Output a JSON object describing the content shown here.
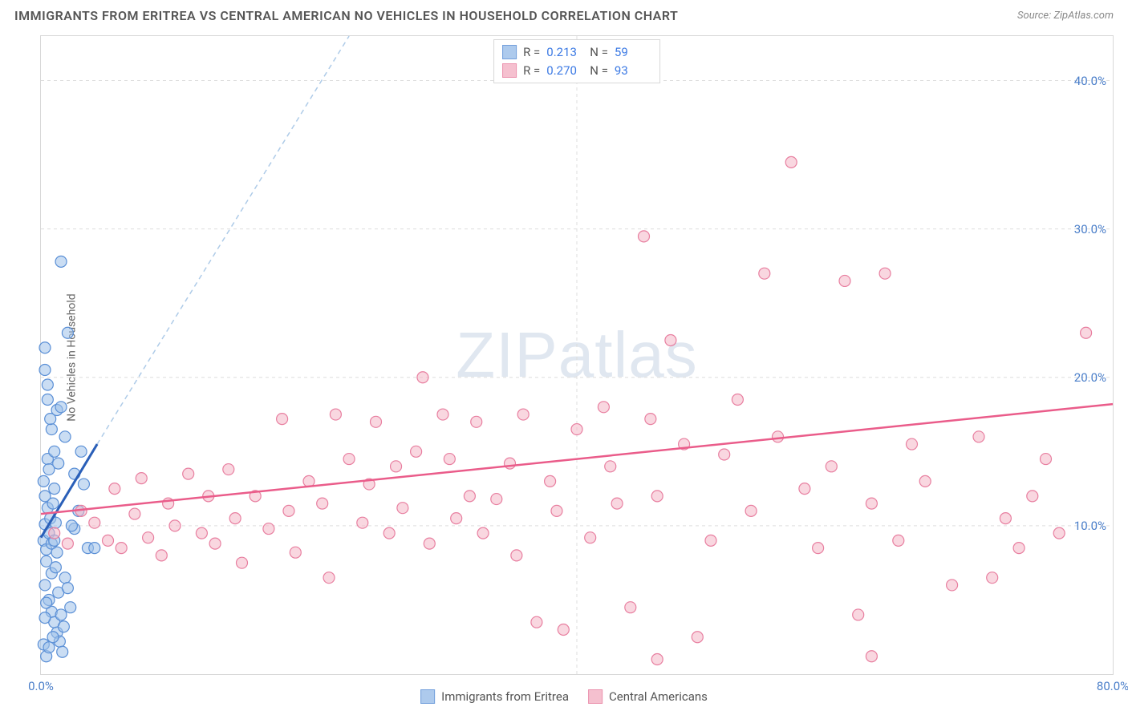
{
  "header": {
    "title": "IMMIGRANTS FROM ERITREA VS CENTRAL AMERICAN NO VEHICLES IN HOUSEHOLD CORRELATION CHART",
    "source_label": "Source:",
    "source_value": "ZipAtlas.com"
  },
  "watermark": "ZIPatlas",
  "chart": {
    "type": "scatter",
    "ylabel": "No Vehicles in Household",
    "xlim": [
      0,
      80
    ],
    "ylim": [
      0,
      43
    ],
    "xticks": [
      0,
      80
    ],
    "xtick_labels": [
      "0.0%",
      "80.0%"
    ],
    "yticks": [
      10,
      20,
      30,
      40
    ],
    "ytick_labels": [
      "10.0%",
      "20.0%",
      "30.0%",
      "40.0%"
    ],
    "grid_color": "#dddddd",
    "background_color": "#ffffff",
    "marker_radius": 7,
    "marker_stroke_width": 1.2,
    "series": [
      {
        "id": "eritrea",
        "label": "Immigrants from Eritrea",
        "fill": "#9fc1ea",
        "stroke": "#5a8fd6",
        "fill_opacity": 0.55,
        "R": "0.213",
        "N": "59",
        "trend": {
          "x1": 0,
          "y1": 9.2,
          "x2": 4.2,
          "y2": 15.5,
          "stroke": "#2a5fb8",
          "width": 3
        },
        "trend_ext": {
          "x1": 4.2,
          "y1": 15.5,
          "x2": 23,
          "y2": 43,
          "stroke": "#aecbe8",
          "dash": "6 5",
          "width": 1.5
        },
        "points": [
          [
            0.2,
            9.0
          ],
          [
            0.3,
            10.1
          ],
          [
            0.4,
            8.4
          ],
          [
            0.5,
            11.2
          ],
          [
            0.4,
            7.6
          ],
          [
            0.6,
            9.5
          ],
          [
            0.3,
            12.0
          ],
          [
            0.7,
            10.5
          ],
          [
            0.8,
            8.8
          ],
          [
            0.9,
            11.5
          ],
          [
            0.2,
            13.0
          ],
          [
            1.0,
            9.0
          ],
          [
            1.1,
            10.2
          ],
          [
            1.2,
            8.2
          ],
          [
            0.5,
            14.5
          ],
          [
            0.3,
            6.0
          ],
          [
            0.6,
            5.0
          ],
          [
            0.8,
            4.2
          ],
          [
            1.0,
            3.5
          ],
          [
            1.2,
            2.8
          ],
          [
            1.4,
            2.2
          ],
          [
            1.6,
            1.5
          ],
          [
            1.3,
            5.5
          ],
          [
            1.5,
            4.0
          ],
          [
            1.7,
            3.2
          ],
          [
            1.8,
            6.5
          ],
          [
            2.0,
            5.8
          ],
          [
            2.2,
            4.5
          ],
          [
            1.0,
            15.0
          ],
          [
            0.8,
            16.5
          ],
          [
            1.2,
            17.8
          ],
          [
            0.5,
            18.5
          ],
          [
            0.3,
            20.5
          ],
          [
            1.5,
            18.0
          ],
          [
            0.7,
            17.2
          ],
          [
            1.8,
            16.0
          ],
          [
            2.5,
            13.5
          ],
          [
            3.0,
            15.0
          ],
          [
            2.0,
            23.0
          ],
          [
            1.5,
            27.8
          ],
          [
            0.3,
            22.0
          ],
          [
            0.5,
            19.5
          ],
          [
            3.5,
            8.5
          ],
          [
            3.2,
            12.8
          ],
          [
            2.8,
            11.0
          ],
          [
            2.5,
            9.8
          ],
          [
            0.2,
            2.0
          ],
          [
            0.4,
            1.2
          ],
          [
            0.6,
            1.8
          ],
          [
            0.9,
            2.5
          ],
          [
            0.3,
            3.8
          ],
          [
            0.6,
            13.8
          ],
          [
            1.0,
            12.5
          ],
          [
            1.3,
            14.2
          ],
          [
            0.8,
            6.8
          ],
          [
            1.1,
            7.2
          ],
          [
            0.4,
            4.8
          ],
          [
            2.3,
            10.0
          ],
          [
            4.0,
            8.5
          ]
        ]
      },
      {
        "id": "central",
        "label": "Central Americans",
        "fill": "#f4b6c7",
        "stroke": "#e87fa0",
        "fill_opacity": 0.55,
        "R": "0.270",
        "N": "93",
        "trend": {
          "x1": 0,
          "y1": 10.8,
          "x2": 80,
          "y2": 18.2,
          "stroke": "#ea5c8a",
          "width": 2.5
        },
        "points": [
          [
            1.0,
            9.5
          ],
          [
            2.0,
            8.8
          ],
          [
            3.0,
            11.0
          ],
          [
            4.0,
            10.2
          ],
          [
            5.0,
            9.0
          ],
          [
            5.5,
            12.5
          ],
          [
            6.0,
            8.5
          ],
          [
            7.0,
            10.8
          ],
          [
            7.5,
            13.2
          ],
          [
            8.0,
            9.2
          ],
          [
            9.0,
            8.0
          ],
          [
            9.5,
            11.5
          ],
          [
            10,
            10.0
          ],
          [
            11,
            13.5
          ],
          [
            12,
            9.5
          ],
          [
            12.5,
            12.0
          ],
          [
            13,
            8.8
          ],
          [
            14,
            13.8
          ],
          [
            14.5,
            10.5
          ],
          [
            15,
            7.5
          ],
          [
            16,
            12.0
          ],
          [
            17,
            9.8
          ],
          [
            18,
            17.2
          ],
          [
            18.5,
            11.0
          ],
          [
            19,
            8.2
          ],
          [
            20,
            13.0
          ],
          [
            21,
            11.5
          ],
          [
            21.5,
            6.5
          ],
          [
            22,
            17.5
          ],
          [
            23,
            14.5
          ],
          [
            24,
            10.2
          ],
          [
            24.5,
            12.8
          ],
          [
            25,
            17.0
          ],
          [
            26,
            9.5
          ],
          [
            26.5,
            14.0
          ],
          [
            27,
            11.2
          ],
          [
            28,
            15.0
          ],
          [
            28.5,
            20.0
          ],
          [
            29,
            8.8
          ],
          [
            30,
            17.5
          ],
          [
            30.5,
            14.5
          ],
          [
            31,
            10.5
          ],
          [
            32,
            12.0
          ],
          [
            32.5,
            17.0
          ],
          [
            33,
            9.5
          ],
          [
            34,
            11.8
          ],
          [
            35,
            14.2
          ],
          [
            35.5,
            8.0
          ],
          [
            36,
            17.5
          ],
          [
            37,
            3.5
          ],
          [
            38,
            13.0
          ],
          [
            38.5,
            11.0
          ],
          [
            39,
            3.0
          ],
          [
            40,
            16.5
          ],
          [
            41,
            9.2
          ],
          [
            42,
            18.0
          ],
          [
            42.5,
            14.0
          ],
          [
            43,
            11.5
          ],
          [
            44,
            4.5
          ],
          [
            45,
            29.5
          ],
          [
            45.5,
            17.2
          ],
          [
            46,
            12.0
          ],
          [
            47,
            22.5
          ],
          [
            48,
            15.5
          ],
          [
            49,
            2.5
          ],
          [
            50,
            9.0
          ],
          [
            51,
            14.8
          ],
          [
            52,
            18.5
          ],
          [
            53,
            11.0
          ],
          [
            54,
            27.0
          ],
          [
            55,
            16.0
          ],
          [
            56,
            34.5
          ],
          [
            57,
            12.5
          ],
          [
            58,
            8.5
          ],
          [
            59,
            14.0
          ],
          [
            60,
            26.5
          ],
          [
            61,
            4.0
          ],
          [
            62,
            11.5
          ],
          [
            63,
            27.0
          ],
          [
            64,
            9.0
          ],
          [
            65,
            15.5
          ],
          [
            66,
            13.0
          ],
          [
            68,
            6.0
          ],
          [
            70,
            16.0
          ],
          [
            71,
            6.5
          ],
          [
            72,
            10.5
          ],
          [
            73,
            8.5
          ],
          [
            74,
            12.0
          ],
          [
            75,
            14.5
          ],
          [
            76,
            9.5
          ],
          [
            78,
            23.0
          ],
          [
            62,
            1.2
          ],
          [
            46,
            1.0
          ]
        ]
      }
    ]
  },
  "legend_top": {
    "r_label": "R  =",
    "n_label": "N  ="
  }
}
